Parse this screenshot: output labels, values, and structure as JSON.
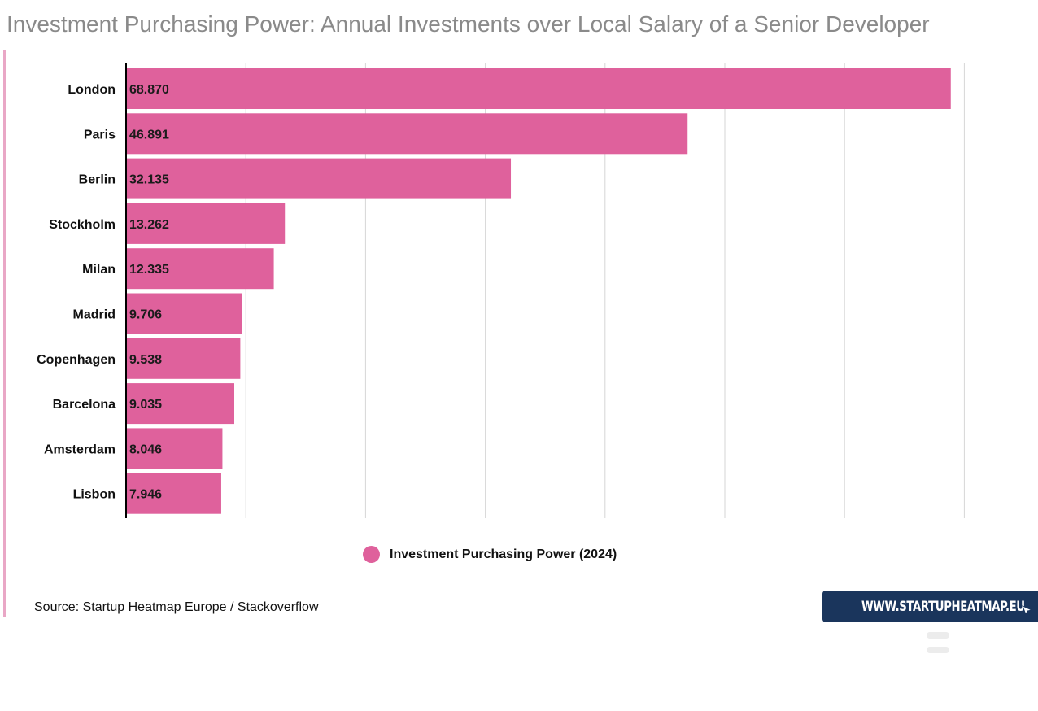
{
  "chart_data": {
    "type": "bar",
    "orientation": "horizontal",
    "title": "Investment Purchasing Power: Annual Investments over Local Salary of a Senior Developer",
    "categories": [
      "London",
      "Paris",
      "Berlin",
      "Stockholm",
      "Milan",
      "Madrid",
      "Copenhagen",
      "Barcelona",
      "Amsterdam",
      "Lisbon"
    ],
    "series": [
      {
        "name": "Investment Purchasing Power (2024)",
        "values": [
          68.87,
          46.891,
          32.135,
          13.262,
          12.335,
          9.706,
          9.538,
          9.035,
          8.046,
          7.946
        ],
        "labels": [
          "68.870",
          "46.891",
          "32.135",
          "13.262",
          "12.335",
          "9.706",
          "9.538",
          "9.035",
          "8.046",
          "7.946"
        ],
        "color": "#df619c"
      }
    ],
    "xlim": [
      0,
      70
    ],
    "xgrid_step": 10,
    "grid": true,
    "legend_position": "bottom-center"
  },
  "source": "Source: Startup Heatmap Europe / Stackoverflow",
  "brand": {
    "label": "WWW.STARTUPHEATMAP.EU",
    "color": "#1a355c"
  },
  "icons": [
    "cursor-icon"
  ]
}
